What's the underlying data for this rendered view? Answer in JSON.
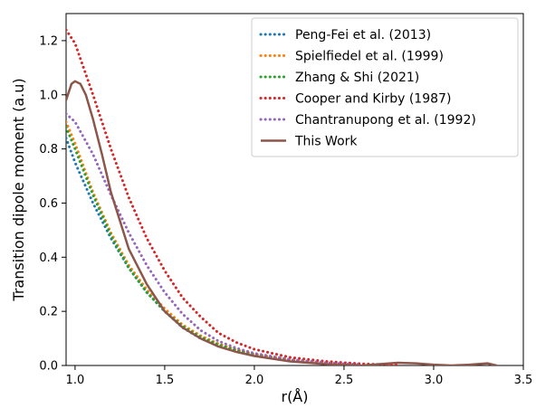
{
  "chart_data": {
    "type": "line",
    "title": "",
    "xlabel": "r(Å)",
    "ylabel": "Transition dipole moment (a.u)",
    "xlim": [
      0.95,
      3.5
    ],
    "ylim": [
      0.0,
      1.3
    ],
    "xticks": [
      1.0,
      1.5,
      2.0,
      2.5,
      3.0,
      3.5
    ],
    "xtick_labels": [
      "1.0",
      "1.5",
      "2.0",
      "2.5",
      "3.0",
      "3.5"
    ],
    "yticks": [
      0.0,
      0.2,
      0.4,
      0.6,
      0.8,
      1.0,
      1.2
    ],
    "ytick_labels": [
      "0.0",
      "0.2",
      "0.4",
      "0.6",
      "0.8",
      "1.0",
      "1.2"
    ],
    "grid": false,
    "legend_position": "top-right",
    "series": [
      {
        "name": "Peng-Fei et al. (2013)",
        "color": "#1f77b4",
        "style": "dotted",
        "x": [
          0.95,
          1.0,
          1.1,
          1.2,
          1.3,
          1.4,
          1.5,
          1.6,
          1.7,
          1.8,
          1.9,
          2.0,
          2.2,
          2.4,
          2.6
        ],
        "y": [
          0.84,
          0.75,
          0.6,
          0.47,
          0.36,
          0.27,
          0.2,
          0.14,
          0.1,
          0.075,
          0.055,
          0.04,
          0.02,
          0.008,
          0.002
        ]
      },
      {
        "name": "Spielfiedel et al. (1999)",
        "color": "#ff7f0e",
        "style": "dotted",
        "x": [
          0.95,
          1.0,
          1.1,
          1.2,
          1.3,
          1.4,
          1.5,
          1.6,
          1.7,
          1.8,
          1.9,
          2.0,
          2.2,
          2.4,
          2.6
        ],
        "y": [
          0.9,
          0.82,
          0.64,
          0.49,
          0.37,
          0.28,
          0.21,
          0.15,
          0.11,
          0.08,
          0.058,
          0.042,
          0.022,
          0.01,
          0.003
        ]
      },
      {
        "name": "Zhang & Shi (2021)",
        "color": "#2ca02c",
        "style": "dotted",
        "x": [
          0.95,
          1.0,
          1.1,
          1.2,
          1.3,
          1.4,
          1.5,
          1.6,
          1.7,
          1.8,
          1.9,
          2.0,
          2.2,
          2.4,
          2.6
        ],
        "y": [
          0.88,
          0.8,
          0.63,
          0.48,
          0.36,
          0.27,
          0.2,
          0.145,
          0.105,
          0.077,
          0.056,
          0.041,
          0.021,
          0.009,
          0.003
        ]
      },
      {
        "name": "Cooper and Kirby (1987)",
        "color": "#d62728",
        "style": "dotted",
        "x": [
          0.95,
          1.0,
          1.1,
          1.2,
          1.3,
          1.4,
          1.5,
          1.6,
          1.7,
          1.8,
          1.9,
          2.0,
          2.2,
          2.4,
          2.6,
          2.8
        ],
        "y": [
          1.24,
          1.19,
          1.0,
          0.8,
          0.62,
          0.47,
          0.35,
          0.25,
          0.18,
          0.12,
          0.085,
          0.06,
          0.03,
          0.015,
          0.006,
          0.002
        ]
      },
      {
        "name": "Chantranupong et al. (1992)",
        "color": "#9467bd",
        "style": "dotted",
        "x": [
          0.95,
          1.0,
          1.1,
          1.2,
          1.3,
          1.4,
          1.5,
          1.6,
          1.7,
          1.8,
          1.9,
          2.0,
          2.2,
          2.4,
          2.6
        ],
        "y": [
          0.93,
          0.9,
          0.78,
          0.63,
          0.49,
          0.37,
          0.27,
          0.19,
          0.13,
          0.09,
          0.064,
          0.045,
          0.022,
          0.01,
          0.003
        ]
      },
      {
        "name": "This Work",
        "color": "#8c564b",
        "style": "solid",
        "x": [
          0.95,
          0.98,
          1.0,
          1.03,
          1.06,
          1.1,
          1.15,
          1.2,
          1.3,
          1.4,
          1.5,
          1.6,
          1.7,
          1.8,
          1.9,
          2.0,
          2.2,
          2.4,
          2.6,
          2.7,
          2.8,
          2.9,
          3.0,
          3.1,
          3.2,
          3.3,
          3.35
        ],
        "y": [
          0.98,
          1.04,
          1.05,
          1.04,
          1.0,
          0.91,
          0.78,
          0.64,
          0.43,
          0.3,
          0.2,
          0.14,
          0.1,
          0.07,
          0.05,
          0.035,
          0.015,
          0.005,
          0.0,
          0.005,
          0.01,
          0.008,
          0.003,
          0.0,
          0.003,
          0.008,
          0.0
        ]
      }
    ]
  }
}
